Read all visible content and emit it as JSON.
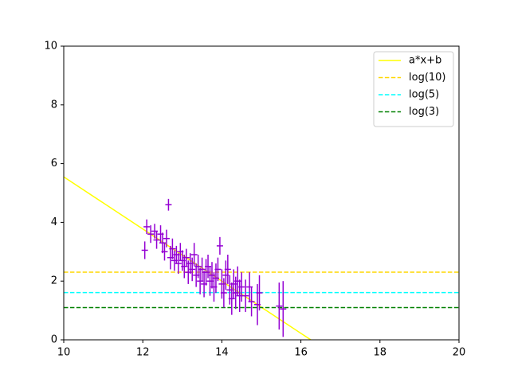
{
  "chart_data": {
    "type": "scatter",
    "xlim": [
      10,
      20
    ],
    "xticks": [
      10,
      12,
      14,
      16,
      18,
      20
    ],
    "ylim": [
      0,
      10
    ],
    "yticks": [
      0,
      2,
      4,
      6,
      8,
      10
    ],
    "legend": "upper right",
    "points": {
      "color": "#9400d3",
      "x": [
        12.05,
        12.1,
        12.2,
        12.3,
        12.35,
        12.45,
        12.5,
        12.55,
        12.6,
        12.65,
        12.7,
        12.75,
        12.8,
        12.85,
        12.9,
        12.95,
        13.0,
        13.05,
        13.1,
        13.15,
        13.2,
        13.25,
        13.3,
        13.35,
        13.4,
        13.45,
        13.5,
        13.55,
        13.6,
        13.65,
        13.7,
        13.75,
        13.8,
        13.85,
        13.9,
        13.95,
        14.0,
        14.05,
        14.1,
        14.15,
        14.2,
        14.25,
        14.3,
        14.35,
        14.4,
        14.45,
        14.5,
        14.6,
        14.7,
        14.75,
        14.9,
        14.95,
        15.45,
        15.55
      ],
      "values": [
        3.05,
        3.85,
        3.6,
        3.7,
        3.4,
        3.6,
        3.3,
        3.0,
        3.45,
        4.6,
        2.8,
        3.1,
        2.7,
        2.9,
        2.6,
        3.0,
        2.7,
        2.5,
        2.8,
        2.3,
        2.6,
        2.4,
        2.9,
        2.2,
        2.5,
        2.0,
        2.4,
        1.9,
        2.3,
        2.5,
        2.0,
        2.2,
        1.8,
        2.1,
        2.4,
        3.2,
        1.9,
        1.6,
        2.2,
        2.4,
        1.7,
        1.4,
        1.9,
        1.6,
        2.0,
        1.5,
        1.8,
        1.5,
        1.8,
        1.3,
        1.2,
        1.6,
        1.15,
        1.05
      ],
      "errors": [
        0.3,
        0.25,
        0.3,
        0.25,
        0.3,
        0.3,
        0.35,
        0.3,
        0.3,
        0.2,
        0.4,
        0.35,
        0.35,
        0.3,
        0.35,
        0.3,
        0.35,
        0.4,
        0.3,
        0.4,
        0.35,
        0.4,
        0.4,
        0.4,
        0.4,
        0.45,
        0.4,
        0.45,
        0.45,
        0.4,
        0.5,
        0.45,
        0.5,
        0.5,
        0.4,
        0.3,
        0.5,
        0.5,
        0.5,
        0.5,
        0.5,
        0.55,
        0.5,
        0.55,
        0.5,
        0.55,
        0.5,
        0.55,
        0.5,
        0.5,
        0.7,
        0.6,
        0.8,
        0.95
      ]
    },
    "series": [
      {
        "name": "a*x+b",
        "color": "yellow",
        "style": "solid",
        "x": [
          10,
          16.25
        ],
        "values": [
          5.55,
          0
        ]
      },
      {
        "name": "log(10)",
        "color": "gold",
        "style": "dashed",
        "value": 2.3026
      },
      {
        "name": "log(5)",
        "color": "cyan",
        "style": "dashed",
        "value": 1.6094
      },
      {
        "name": "log(3)",
        "color": "green",
        "style": "dashed",
        "value": 1.0986
      }
    ]
  }
}
